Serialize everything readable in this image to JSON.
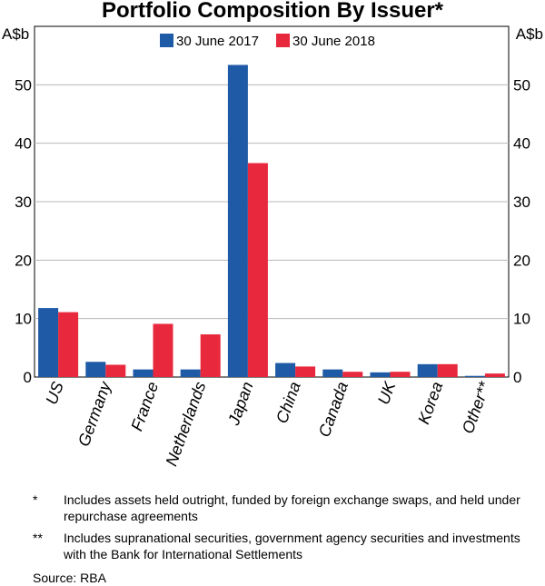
{
  "chart_data": {
    "type": "bar",
    "title": "Portfolio Composition By Issuer*",
    "ylabel_left": "A$b",
    "ylabel_right": "A$b",
    "ylim": [
      0,
      60
    ],
    "yticks": [
      0,
      10,
      20,
      30,
      40,
      50
    ],
    "categories": [
      "US",
      "Germany",
      "France",
      "Netherlands",
      "Japan",
      "China",
      "Canada",
      "UK",
      "Korea",
      "Other**"
    ],
    "series": [
      {
        "name": "30 June 2017",
        "color": "#1f5aa6",
        "values": [
          11.8,
          2.6,
          1.3,
          1.3,
          53.4,
          2.4,
          1.3,
          0.8,
          2.2,
          0.2
        ]
      },
      {
        "name": "30 June 2018",
        "color": "#e8283c",
        "values": [
          11.1,
          2.1,
          9.1,
          7.3,
          36.6,
          1.8,
          0.9,
          0.9,
          2.2,
          0.6
        ]
      }
    ],
    "legend_position": "top-center",
    "grid": true
  },
  "notes": [
    {
      "mark": "*",
      "text": "Includes assets held outright, funded by foreign exchange swaps, and held under repurchase agreements"
    },
    {
      "mark": "**",
      "text": "Includes supranational securities, government agency securities and investments with the Bank for International Settlements"
    }
  ],
  "source": "Source:   RBA"
}
